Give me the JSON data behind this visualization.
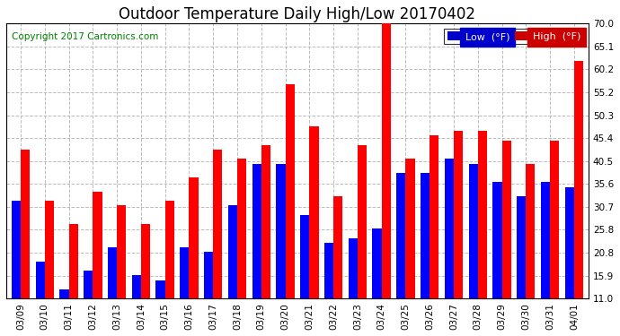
{
  "title": "Outdoor Temperature Daily High/Low 20170402",
  "copyright": "Copyright 2017 Cartronics.com",
  "legend_low": "Low  (°F)",
  "legend_high": "High  (°F)",
  "categories": [
    "03/09",
    "03/10",
    "03/11",
    "03/12",
    "03/13",
    "03/14",
    "03/15",
    "03/16",
    "03/17",
    "03/18",
    "03/19",
    "03/20",
    "03/21",
    "03/22",
    "03/23",
    "03/24",
    "03/25",
    "03/26",
    "03/27",
    "03/28",
    "03/29",
    "03/30",
    "03/31",
    "04/01"
  ],
  "low": [
    32,
    19,
    13,
    17,
    22,
    16,
    15,
    22,
    21,
    31,
    40,
    40,
    29,
    23,
    24,
    26,
    38,
    38,
    41,
    40,
    36,
    33,
    36,
    35
  ],
  "high": [
    43,
    32,
    27,
    34,
    31,
    27,
    32,
    37,
    43,
    41,
    44,
    57,
    48,
    33,
    44,
    70,
    41,
    46,
    47,
    47,
    45,
    40,
    45,
    62
  ],
  "ylim_min": 11.0,
  "ylim_max": 70.0,
  "yticks": [
    11.0,
    15.9,
    20.8,
    25.8,
    30.7,
    35.6,
    40.5,
    45.4,
    50.3,
    55.2,
    60.2,
    65.1,
    70.0
  ],
  "bar_width": 0.38,
  "low_color": "#0000ff",
  "high_color": "#ff0000",
  "low_label_bg": "#0000cc",
  "high_label_bg": "#cc0000",
  "grid_color": "#bbbbbb",
  "bg_color": "#ffffff",
  "title_fontsize": 12,
  "copyright_fontsize": 7.5,
  "tick_fontsize": 7.5,
  "legend_fontsize": 8
}
